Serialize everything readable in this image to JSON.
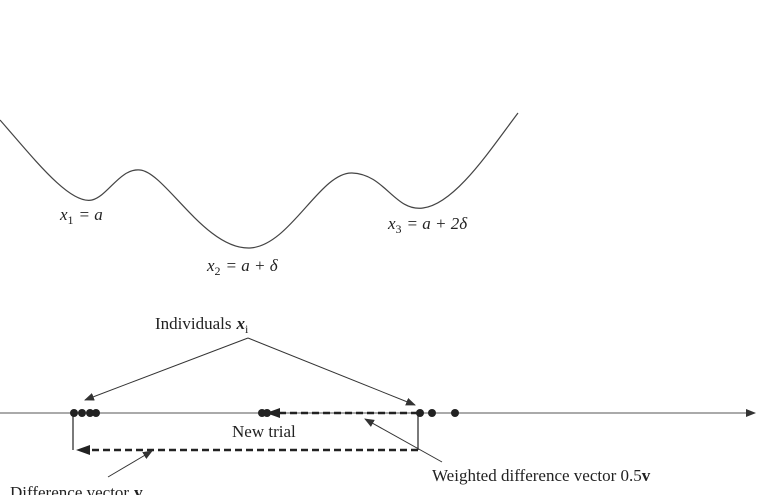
{
  "labels": {
    "x1": {
      "var": "x",
      "sub": "1",
      "expr": "= a"
    },
    "x2": {
      "var": "x",
      "sub": "2",
      "expr": "= a + δ"
    },
    "x3": {
      "var": "x",
      "sub": "3",
      "expr": "= a + 2δ"
    }
  },
  "annotations": {
    "individuals": {
      "text": "Individuals",
      "var": "x",
      "sub": "i"
    },
    "new_trial": "New trial",
    "weighted_difference": {
      "text": "Weighted difference vector 0.5",
      "bold": "v"
    },
    "difference": {
      "text": "Difference vector",
      "bold": "v"
    }
  }
}
